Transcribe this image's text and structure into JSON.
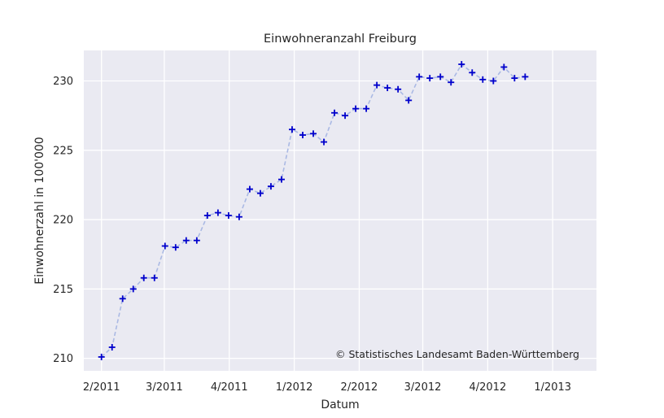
{
  "chart_data": {
    "type": "line",
    "title": "Einwohneranzahl Freiburg",
    "xlabel": "Datum",
    "ylabel": "Einwohnerzahl in 100'000",
    "annotation": "© Statistisches Landesamt Baden-Württemberg",
    "grid": true,
    "background": "#eaeaf2",
    "series_marker_color": "#0000cc",
    "series_line_color": "#aab9e4",
    "xlim": [
      "2011-01-07",
      "2013-01-02"
    ],
    "ylim": [
      209.1,
      232.2
    ],
    "x_ticks": [
      {
        "date": "2011-02-01",
        "label": "2/2011"
      },
      {
        "date": "2011-05-01",
        "label": "3/2011"
      },
      {
        "date": "2011-08-01",
        "label": "4/2011"
      },
      {
        "date": "2011-11-01",
        "label": "1/2012"
      },
      {
        "date": "2012-02-01",
        "label": "2/2012"
      },
      {
        "date": "2012-05-01",
        "label": "3/2012"
      },
      {
        "date": "2012-08-01",
        "label": "4/2012"
      },
      {
        "date": "2012-11-01",
        "label": "1/2013"
      }
    ],
    "y_ticks": [
      210,
      215,
      220,
      225,
      230
    ],
    "series": [
      {
        "x": [
          "2011-02-01",
          "2011-02-16",
          "2011-03-03",
          "2011-03-18",
          "2011-04-02",
          "2011-04-17",
          "2011-05-02",
          "2011-05-17",
          "2011-06-01",
          "2011-06-16",
          "2011-07-01",
          "2011-07-16",
          "2011-07-31",
          "2011-08-15",
          "2011-08-30",
          "2011-09-14",
          "2011-09-29",
          "2011-10-14",
          "2011-10-29",
          "2011-11-13",
          "2011-11-28",
          "2011-12-13",
          "2011-12-28",
          "2012-01-12",
          "2012-01-27",
          "2012-02-11",
          "2012-02-26",
          "2012-03-12",
          "2012-03-27",
          "2012-04-11",
          "2012-04-26",
          "2012-05-11",
          "2012-05-26",
          "2012-06-10",
          "2012-06-25",
          "2012-07-10",
          "2012-07-25",
          "2012-08-09",
          "2012-08-24",
          "2012-09-08",
          "2012-09-23"
        ],
        "values": [
          210.1,
          210.8,
          214.3,
          215.0,
          215.8,
          215.8,
          218.1,
          218.0,
          218.5,
          218.5,
          220.3,
          220.5,
          220.3,
          220.2,
          222.2,
          221.9,
          222.4,
          222.9,
          226.5,
          226.1,
          226.2,
          225.6,
          227.7,
          227.5,
          228.0,
          228.0,
          229.7,
          229.5,
          229.4,
          228.6,
          230.3,
          230.2,
          230.3,
          229.9,
          231.2,
          230.6,
          230.1,
          230.0,
          231.0,
          230.2,
          230.3
        ]
      }
    ]
  }
}
